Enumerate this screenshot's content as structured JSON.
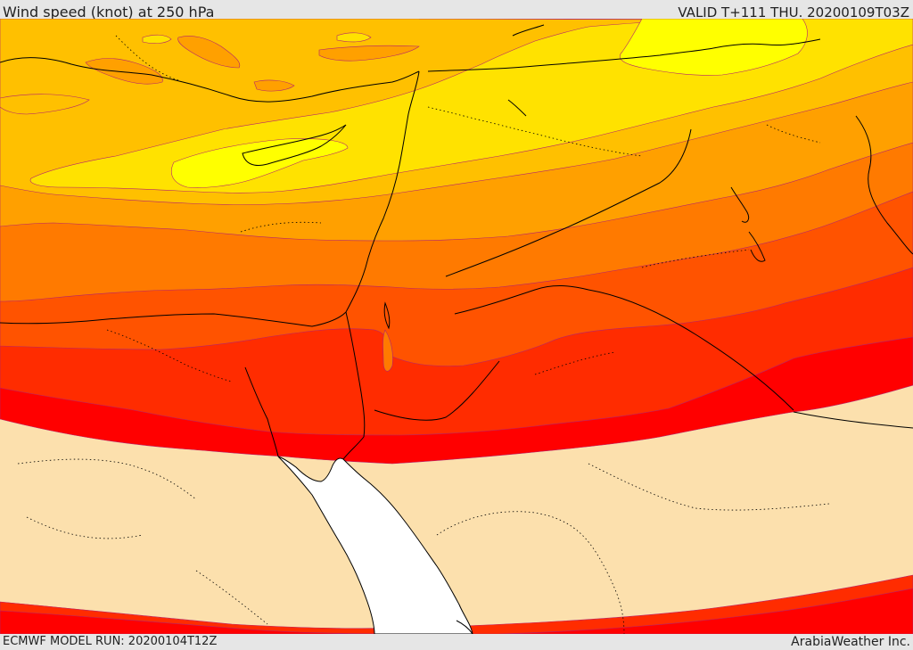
{
  "header": {
    "title": "Wind speed (knot) at 250 hPa",
    "valid": "VALID T+111 THU. 20200109T03Z"
  },
  "footer": {
    "model_run": "ECMWF MODEL RUN: 20200104T12Z",
    "brand": "ArabiaWeather Inc."
  },
  "colors": {
    "below_threshold": "#fce0ad",
    "band_1": "#ffff00",
    "band_2": "#ffe200",
    "band_3": "#ffc000",
    "band_4": "#ffa000",
    "band_5": "#ff7a00",
    "band_6": "#ff5300",
    "band_7": "#ff2c00",
    "band_8": "#ff0000",
    "sea": "#ffffff"
  }
}
